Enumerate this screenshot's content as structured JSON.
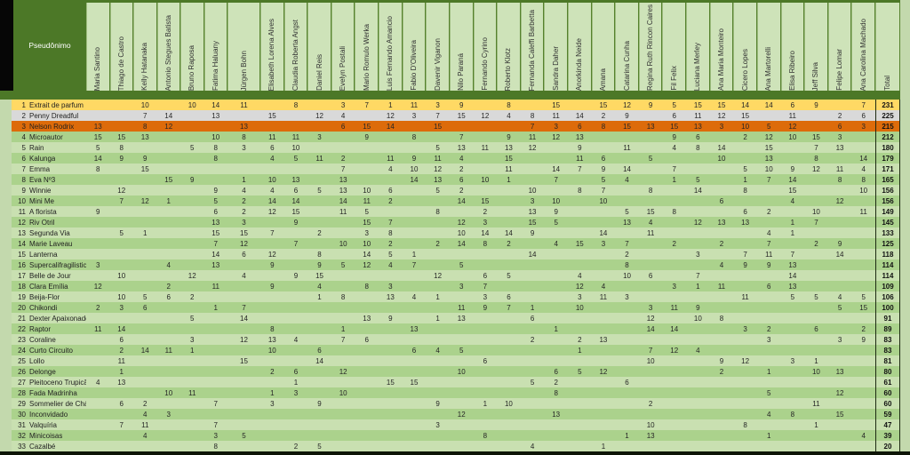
{
  "title_cell": "Pseudônimo",
  "total_label": "Total",
  "colors": {
    "dark_green": "#4c7827",
    "header_cell_green": "#cee3b9",
    "row_light": "#c9e0b1",
    "row_dark": "#abd28c",
    "gold": "#ffd964",
    "silver": "#d9d9d9",
    "bronze": "#dd6b0a",
    "edge_black": "#0d1506",
    "right_margin_green": "#c3d9ad"
  },
  "columns": [
    "Maria Santino",
    "Thiago de Castro",
    "Kelly Hatanaka",
    "Antonio Stegues Batista",
    "Bruno Raposa",
    "Fatima Haluany",
    "Jürgen Bohn",
    "Elisabeth Lorena Alves",
    "Claudia Roberta Angst",
    "Daniel Reis",
    "Evelyn Postali",
    "Mario Romulo Werka",
    "Luis Fernando Amancio",
    "Fabio D'Oliveira",
    "Davenir Viganon",
    "Nilo Paraná",
    "Fernando Cyrino",
    "Roberto Klotz",
    "Fernanda Caleffi Barbetta",
    "Sandra Daher",
    "Anorkinda Neide",
    "Amana",
    "Catarina Cunha",
    "Regina Ruth Rincon Caires",
    "Fil Felix",
    "Luciana Merley",
    "Ana Maria Monteiro",
    "Cicero Lopes",
    "Ana Martorelli",
    "Elisa Ribeiro",
    "Jeff Silva",
    "Felipe Lomar",
    "Ana Carolina Machado"
  ],
  "rows": [
    {
      "n": 1,
      "name": "Extrait de parfum",
      "band": "gold",
      "values": [
        null,
        null,
        10,
        null,
        10,
        14,
        11,
        null,
        8,
        null,
        3,
        7,
        1,
        11,
        3,
        9,
        null,
        8,
        null,
        15,
        null,
        15,
        12,
        9,
        5,
        15,
        15,
        14,
        14,
        6,
        9,
        null,
        7
      ],
      "total": 231
    },
    {
      "n": 2,
      "name": "Penny Dreadful",
      "band": "silver",
      "values": [
        null,
        null,
        7,
        14,
        null,
        13,
        null,
        15,
        null,
        12,
        4,
        null,
        12,
        3,
        7,
        15,
        12,
        4,
        8,
        11,
        14,
        2,
        9,
        null,
        6,
        11,
        12,
        15,
        null,
        11,
        null,
        2,
        6
      ],
      "total": 225
    },
    {
      "n": 3,
      "name": "Nelson Rodrix",
      "band": "bronze",
      "values": [
        13,
        null,
        8,
        12,
        null,
        null,
        13,
        null,
        null,
        null,
        6,
        15,
        14,
        null,
        15,
        null,
        null,
        null,
        7,
        3,
        6,
        8,
        15,
        13,
        15,
        13,
        3,
        10,
        5,
        12,
        null,
        6,
        3
      ],
      "total": 215
    },
    {
      "n": 4,
      "name": "Microautor",
      "band": null,
      "values": [
        15,
        15,
        13,
        null,
        null,
        10,
        8,
        11,
        11,
        3,
        null,
        9,
        null,
        8,
        null,
        7,
        null,
        9,
        11,
        12,
        13,
        null,
        null,
        null,
        9,
        6,
        null,
        2,
        12,
        10,
        15,
        3,
        null
      ],
      "total": 212
    },
    {
      "n": 5,
      "name": "Rain",
      "band": null,
      "values": [
        5,
        8,
        null,
        null,
        5,
        8,
        3,
        6,
        10,
        null,
        null,
        null,
        null,
        null,
        5,
        13,
        11,
        13,
        12,
        null,
        9,
        null,
        11,
        null,
        4,
        8,
        14,
        null,
        15,
        null,
        7,
        13,
        null
      ],
      "total": 180
    },
    {
      "n": 6,
      "name": "Kalunga",
      "band": null,
      "values": [
        14,
        9,
        9,
        null,
        null,
        8,
        null,
        4,
        5,
        11,
        2,
        null,
        11,
        9,
        11,
        4,
        null,
        15,
        null,
        null,
        11,
        6,
        null,
        5,
        null,
        null,
        10,
        null,
        13,
        null,
        8,
        null,
        14
      ],
      "total": 179
    },
    {
      "n": 7,
      "name": "Emma",
      "band": null,
      "values": [
        8,
        null,
        15,
        null,
        null,
        null,
        null,
        null,
        null,
        null,
        7,
        null,
        4,
        10,
        12,
        2,
        null,
        11,
        null,
        14,
        7,
        9,
        14,
        null,
        7,
        null,
        null,
        5,
        10,
        9,
        12,
        11,
        4
      ],
      "total": 171
    },
    {
      "n": 8,
      "name": "Eva Nº3",
      "band": null,
      "values": [
        null,
        null,
        null,
        15,
        9,
        null,
        1,
        10,
        13,
        null,
        13,
        null,
        null,
        14,
        13,
        6,
        10,
        1,
        null,
        7,
        null,
        5,
        4,
        null,
        1,
        5,
        null,
        1,
        7,
        14,
        null,
        8,
        8
      ],
      "total": 165
    },
    {
      "n": 9,
      "name": "Winnie",
      "band": null,
      "values": [
        null,
        12,
        null,
        null,
        null,
        9,
        4,
        4,
        6,
        5,
        13,
        10,
        6,
        null,
        5,
        2,
        null,
        null,
        10,
        null,
        8,
        7,
        null,
        8,
        null,
        14,
        null,
        8,
        null,
        15,
        null,
        null,
        10
      ],
      "total": 156
    },
    {
      "n": 10,
      "name": "Mini Me",
      "band": null,
      "values": [
        null,
        7,
        12,
        1,
        null,
        5,
        2,
        14,
        14,
        null,
        14,
        11,
        2,
        null,
        null,
        14,
        15,
        null,
        3,
        10,
        null,
        10,
        null,
        null,
        null,
        null,
        6,
        null,
        null,
        4,
        null,
        12,
        null
      ],
      "total": 156
    },
    {
      "n": 11,
      "name": "A florista",
      "band": null,
      "values": [
        9,
        null,
        null,
        null,
        null,
        6,
        2,
        12,
        15,
        null,
        11,
        5,
        null,
        null,
        8,
        null,
        2,
        null,
        13,
        9,
        null,
        null,
        5,
        15,
        8,
        null,
        null,
        6,
        2,
        null,
        10,
        null,
        11
      ],
      "total": 149
    },
    {
      "n": 12,
      "name": "Riv Otril",
      "band": null,
      "values": [
        null,
        null,
        null,
        null,
        null,
        13,
        3,
        null,
        9,
        null,
        null,
        15,
        7,
        null,
        null,
        12,
        3,
        null,
        15,
        5,
        null,
        null,
        13,
        4,
        null,
        12,
        13,
        13,
        null,
        1,
        7,
        null,
        null
      ],
      "total": 145
    },
    {
      "n": 13,
      "name": "Segunda Via",
      "band": null,
      "values": [
        null,
        5,
        1,
        null,
        null,
        15,
        15,
        7,
        null,
        2,
        null,
        3,
        8,
        null,
        null,
        10,
        14,
        14,
        9,
        null,
        null,
        14,
        null,
        11,
        null,
        null,
        null,
        null,
        4,
        1,
        null,
        null,
        null
      ],
      "total": 133
    },
    {
      "n": 14,
      "name": "Marie Laveau",
      "band": null,
      "values": [
        null,
        null,
        null,
        null,
        null,
        7,
        12,
        null,
        7,
        null,
        10,
        10,
        2,
        null,
        2,
        14,
        8,
        2,
        null,
        4,
        15,
        3,
        7,
        null,
        2,
        null,
        2,
        null,
        7,
        null,
        2,
        9,
        null
      ],
      "total": 125
    },
    {
      "n": 15,
      "name": "Lanterna",
      "band": null,
      "values": [
        null,
        null,
        null,
        null,
        null,
        14,
        6,
        12,
        null,
        8,
        null,
        14,
        5,
        1,
        null,
        null,
        null,
        null,
        14,
        null,
        null,
        null,
        2,
        null,
        null,
        3,
        null,
        7,
        11,
        7,
        null,
        14,
        null
      ],
      "total": 118
    },
    {
      "n": 16,
      "name": "Supercalifragilisticexpialidoce",
      "band": null,
      "values": [
        3,
        null,
        null,
        4,
        null,
        13,
        null,
        9,
        null,
        9,
        5,
        12,
        4,
        7,
        null,
        5,
        null,
        null,
        null,
        null,
        null,
        null,
        8,
        null,
        null,
        null,
        4,
        9,
        9,
        13,
        null,
        null,
        null
      ],
      "total": 114
    },
    {
      "n": 17,
      "name": "Belle de Jour",
      "band": null,
      "values": [
        null,
        10,
        null,
        null,
        12,
        null,
        4,
        null,
        9,
        15,
        null,
        null,
        null,
        null,
        12,
        null,
        6,
        5,
        null,
        null,
        4,
        null,
        10,
        6,
        null,
        7,
        null,
        null,
        null,
        14,
        null,
        null,
        null
      ],
      "total": 114
    },
    {
      "n": 18,
      "name": "Clara Emília",
      "band": null,
      "values": [
        12,
        null,
        null,
        2,
        null,
        11,
        null,
        9,
        null,
        4,
        null,
        8,
        3,
        null,
        null,
        3,
        7,
        null,
        null,
        null,
        12,
        4,
        null,
        null,
        3,
        1,
        11,
        null,
        6,
        13,
        null,
        null,
        null
      ],
      "total": 109
    },
    {
      "n": 19,
      "name": "Beija-Flor",
      "band": null,
      "values": [
        null,
        10,
        5,
        6,
        2,
        null,
        null,
        null,
        null,
        1,
        8,
        null,
        13,
        4,
        1,
        null,
        3,
        6,
        null,
        null,
        3,
        11,
        3,
        null,
        null,
        null,
        null,
        11,
        null,
        5,
        5,
        4,
        5
      ],
      "total": 106
    },
    {
      "n": 20,
      "name": "Chikondi",
      "band": null,
      "values": [
        2,
        3,
        6,
        null,
        null,
        1,
        7,
        null,
        null,
        null,
        null,
        null,
        null,
        null,
        null,
        11,
        9,
        7,
        1,
        null,
        10,
        null,
        null,
        3,
        11,
        9,
        null,
        null,
        null,
        null,
        null,
        5,
        15
      ],
      "total": 100
    },
    {
      "n": 21,
      "name": "Dexter Apaixonado",
      "band": null,
      "values": [
        null,
        null,
        null,
        null,
        5,
        null,
        14,
        null,
        null,
        null,
        null,
        13,
        9,
        null,
        1,
        13,
        null,
        null,
        6,
        null,
        null,
        null,
        null,
        12,
        null,
        10,
        8,
        null,
        null,
        null,
        null,
        null,
        null
      ],
      "total": 91
    },
    {
      "n": 22,
      "name": "Raptor",
      "band": null,
      "values": [
        11,
        14,
        null,
        null,
        null,
        null,
        null,
        8,
        null,
        null,
        1,
        null,
        null,
        13,
        null,
        null,
        null,
        null,
        null,
        1,
        null,
        null,
        null,
        14,
        14,
        null,
        null,
        3,
        2,
        null,
        6,
        null,
        2
      ],
      "total": 89
    },
    {
      "n": 23,
      "name": "Coraline",
      "band": null,
      "values": [
        null,
        6,
        null,
        null,
        3,
        null,
        12,
        13,
        4,
        null,
        7,
        6,
        null,
        null,
        null,
        null,
        null,
        null,
        2,
        null,
        2,
        13,
        null,
        null,
        null,
        null,
        null,
        null,
        3,
        null,
        null,
        3,
        9
      ],
      "total": 83
    },
    {
      "n": 24,
      "name": "Curto Circuito",
      "band": null,
      "values": [
        null,
        2,
        14,
        11,
        1,
        null,
        null,
        10,
        null,
        6,
        null,
        null,
        null,
        6,
        4,
        5,
        null,
        null,
        null,
        null,
        1,
        null,
        null,
        7,
        12,
        4,
        null,
        null,
        null,
        null,
        null,
        null,
        null
      ],
      "total": 83
    },
    {
      "n": 25,
      "name": "Lollo",
      "band": null,
      "values": [
        null,
        11,
        null,
        null,
        null,
        null,
        15,
        null,
        null,
        14,
        null,
        null,
        null,
        null,
        null,
        null,
        6,
        null,
        null,
        null,
        null,
        null,
        null,
        10,
        null,
        null,
        9,
        12,
        null,
        3,
        1,
        null,
        null
      ],
      "total": 81
    },
    {
      "n": 26,
      "name": "Delonge",
      "band": null,
      "values": [
        null,
        1,
        null,
        null,
        null,
        null,
        null,
        2,
        6,
        null,
        12,
        null,
        null,
        null,
        null,
        10,
        null,
        null,
        null,
        6,
        5,
        12,
        null,
        null,
        null,
        null,
        2,
        null,
        1,
        null,
        10,
        13,
        null
      ],
      "total": 80
    },
    {
      "n": 27,
      "name": "Pleitoceno Trupicão",
      "band": null,
      "values": [
        4,
        13,
        null,
        null,
        null,
        null,
        null,
        null,
        1,
        null,
        null,
        null,
        15,
        15,
        null,
        null,
        null,
        null,
        5,
        2,
        null,
        null,
        6,
        null,
        null,
        null,
        null,
        null,
        null,
        null,
        null,
        null,
        null
      ],
      "total": 61
    },
    {
      "n": 28,
      "name": "Fada Madrinha",
      "band": null,
      "values": [
        null,
        null,
        null,
        10,
        11,
        null,
        null,
        1,
        3,
        null,
        10,
        null,
        null,
        null,
        null,
        null,
        null,
        null,
        null,
        8,
        null,
        null,
        null,
        null,
        null,
        null,
        null,
        null,
        5,
        null,
        null,
        12,
        null
      ],
      "total": 60
    },
    {
      "n": 29,
      "name": "Sommelier de Chá",
      "band": null,
      "values": [
        null,
        6,
        2,
        null,
        null,
        7,
        null,
        3,
        null,
        9,
        null,
        null,
        null,
        null,
        9,
        null,
        1,
        10,
        null,
        null,
        null,
        null,
        null,
        2,
        null,
        null,
        null,
        null,
        null,
        null,
        11,
        null,
        null
      ],
      "total": 60
    },
    {
      "n": 30,
      "name": "Inconvidado",
      "band": null,
      "values": [
        null,
        null,
        4,
        3,
        null,
        null,
        null,
        null,
        null,
        null,
        null,
        null,
        null,
        null,
        null,
        12,
        null,
        null,
        null,
        13,
        null,
        null,
        null,
        null,
        null,
        null,
        null,
        null,
        4,
        8,
        null,
        15,
        null
      ],
      "total": 59
    },
    {
      "n": 31,
      "name": "Valquíria",
      "band": null,
      "values": [
        null,
        7,
        11,
        null,
        null,
        7,
        null,
        null,
        null,
        null,
        null,
        null,
        null,
        null,
        3,
        null,
        null,
        null,
        null,
        null,
        null,
        null,
        null,
        10,
        null,
        null,
        null,
        8,
        null,
        null,
        1,
        null,
        null
      ],
      "total": 47
    },
    {
      "n": 32,
      "name": "Minicoisas",
      "band": null,
      "values": [
        null,
        null,
        4,
        null,
        null,
        3,
        5,
        null,
        null,
        null,
        null,
        null,
        null,
        null,
        null,
        null,
        8,
        null,
        null,
        null,
        null,
        null,
        1,
        13,
        null,
        null,
        null,
        null,
        1,
        null,
        null,
        null,
        4
      ],
      "total": 39
    },
    {
      "n": 33,
      "name": "Cazalbé",
      "band": null,
      "values": [
        null,
        null,
        null,
        null,
        null,
        8,
        null,
        null,
        2,
        5,
        null,
        null,
        null,
        null,
        null,
        null,
        null,
        null,
        4,
        null,
        null,
        1,
        null,
        null,
        null,
        null,
        null,
        null,
        null,
        null,
        null,
        null,
        null
      ],
      "total": 20
    }
  ]
}
